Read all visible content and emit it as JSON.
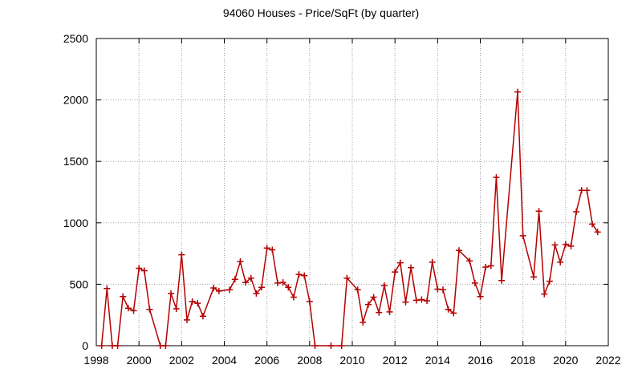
{
  "chart_data": {
    "type": "line",
    "title": "94060 Houses - Price/SqFt (by quarter)",
    "xlabel": "",
    "ylabel": "",
    "xlim": [
      1998,
      2022
    ],
    "ylim": [
      0,
      2500
    ],
    "xticks": [
      1998,
      2000,
      2002,
      2004,
      2006,
      2008,
      2010,
      2012,
      2014,
      2016,
      2018,
      2020,
      2022
    ],
    "yticks": [
      0,
      500,
      1000,
      1500,
      2000,
      2500
    ],
    "grid": true,
    "legend": "none",
    "color": "#b40000",
    "marker": "plus",
    "series": [
      {
        "x": [
          1998.25,
          1998.5,
          1998.75,
          1999.0,
          1999.25,
          1999.5,
          1999.75,
          2000.0,
          2000.25,
          2000.5,
          2001.0,
          2001.25,
          2001.5,
          2001.75,
          2002.0,
          2002.25,
          2002.5,
          2002.75,
          2003.0,
          2003.5,
          2003.75,
          2004.25,
          2004.5,
          2004.75,
          2005.0,
          2005.25,
          2005.5,
          2005.75,
          2006.0,
          2006.25,
          2006.5,
          2006.75,
          2007.0,
          2007.25,
          2007.5,
          2007.75,
          2008.0,
          2008.25,
          2009.0,
          2009.5,
          2009.75,
          2010.25,
          2010.5,
          2010.75,
          2011.0,
          2011.25,
          2011.5,
          2011.75,
          2012.0,
          2012.25,
          2012.5,
          2012.75,
          2013.0,
          2013.25,
          2013.5,
          2013.75,
          2014.0,
          2014.25,
          2014.5,
          2014.75,
          2015.0,
          2015.5,
          2015.75,
          2016.0,
          2016.25,
          2016.5,
          2016.75,
          2017.0,
          2017.75,
          2018.0,
          2018.5,
          2018.75,
          2019.0,
          2019.25,
          2019.5,
          2019.75,
          2020.0,
          2020.25,
          2020.5,
          2020.75,
          2021.0,
          2021.25,
          2021.5
        ],
        "y": [
          0,
          465,
          0,
          0,
          400,
          305,
          285,
          630,
          610,
          295,
          0,
          0,
          425,
          300,
          740,
          210,
          360,
          345,
          240,
          470,
          445,
          455,
          540,
          685,
          515,
          550,
          425,
          475,
          795,
          780,
          510,
          515,
          475,
          395,
          580,
          570,
          360,
          0,
          0,
          0,
          550,
          455,
          190,
          335,
          395,
          270,
          490,
          275,
          600,
          675,
          355,
          635,
          370,
          375,
          365,
          680,
          460,
          455,
          295,
          265,
          775,
          690,
          510,
          400,
          640,
          650,
          1370,
          530,
          2065,
          895,
          560,
          1095,
          420,
          525,
          820,
          680,
          825,
          810,
          1090,
          1265,
          1265,
          990,
          925
        ]
      }
    ]
  }
}
